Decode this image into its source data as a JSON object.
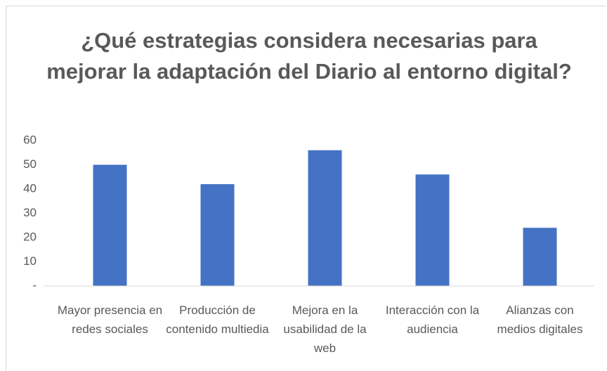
{
  "chart_data": {
    "type": "bar",
    "title": "¿Qué estrategias considera necesarias para mejorar la adaptación del Diario al entorno digital?",
    "categories": [
      "Mayor presencia en redes sociales",
      "Producción de contenido multiedia",
      "Mejora en la usabilidad de la web",
      "Interacción con la audiencia",
      "Alianzas con medios digitales"
    ],
    "values": [
      50,
      42,
      56,
      46,
      24
    ],
    "color": "#4472c4",
    "ylim": [
      0,
      60
    ],
    "yticks": [
      {
        "value": 0,
        "label": "-"
      },
      10,
      20,
      30,
      40,
      50,
      60
    ],
    "grid": false
  }
}
